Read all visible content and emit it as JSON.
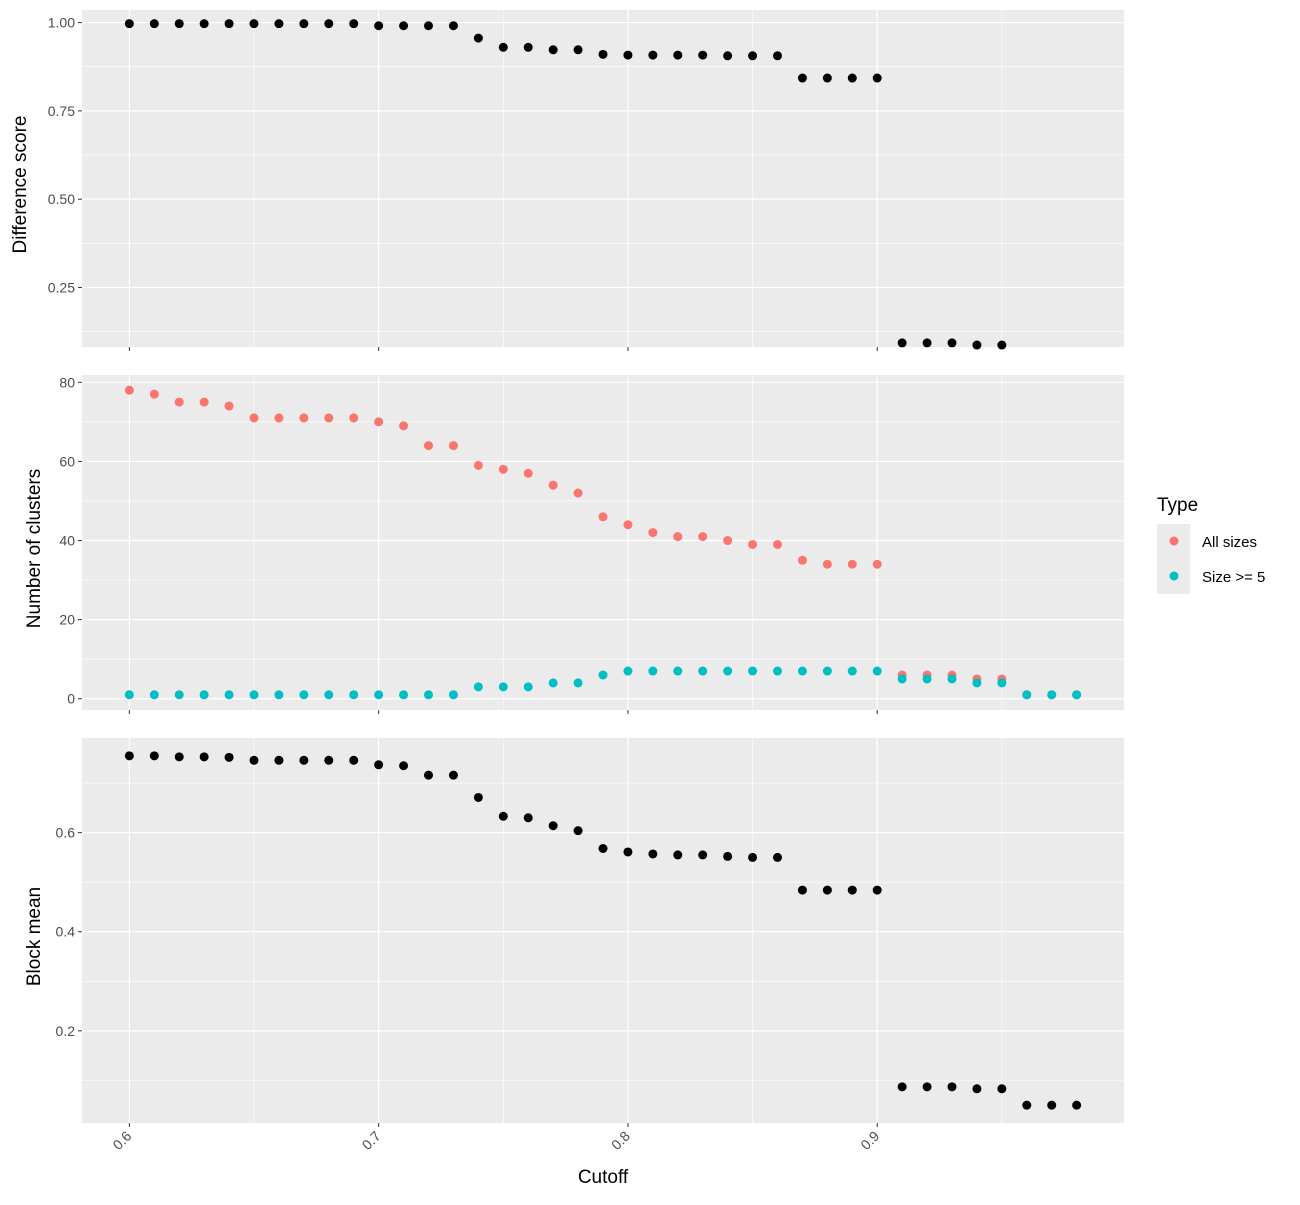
{
  "chart_data": [
    {
      "type": "scatter",
      "ylabel": "Difference score",
      "xlabel": "",
      "xlim": [
        0.581,
        0.999
      ],
      "ylim": [
        0.0814,
        1.0356
      ],
      "yticks": [
        0.25,
        0.5,
        0.75,
        1.0
      ],
      "ytick_labels": [
        "0.25",
        "0.50",
        "0.75",
        "1.00"
      ],
      "series": [
        {
          "color": "#000000",
          "x": [
            0.6,
            0.61,
            0.62,
            0.63,
            0.64,
            0.65,
            0.66,
            0.67,
            0.68,
            0.69,
            0.7,
            0.71,
            0.72,
            0.73,
            0.74,
            0.75,
            0.76,
            0.77,
            0.78,
            0.79,
            0.8,
            0.81,
            0.82,
            0.83,
            0.84,
            0.85,
            0.86,
            0.87,
            0.88,
            0.89,
            0.9,
            0.91,
            0.92,
            0.93,
            0.94,
            0.95
          ],
          "y": [
            0.997,
            0.997,
            0.997,
            0.997,
            0.997,
            0.997,
            0.997,
            0.997,
            0.997,
            0.997,
            0.991,
            0.991,
            0.991,
            0.991,
            0.956,
            0.93,
            0.93,
            0.923,
            0.923,
            0.91,
            0.908,
            0.908,
            0.908,
            0.908,
            0.906,
            0.906,
            0.906,
            0.843,
            0.843,
            0.843,
            0.843,
            0.093,
            0.093,
            0.093,
            0.087,
            0.087
          ]
        }
      ]
    },
    {
      "type": "scatter",
      "ylabel": "Number of clusters",
      "xlabel": "",
      "xlim": [
        0.581,
        0.999
      ],
      "ylim": [
        -2.85,
        81.85
      ],
      "yticks": [
        0,
        20,
        40,
        60,
        80
      ],
      "ytick_labels": [
        "0",
        "20",
        "40",
        "60",
        "80"
      ],
      "series": [
        {
          "name": "All sizes",
          "color": "#F8766D",
          "x": [
            0.6,
            0.61,
            0.62,
            0.63,
            0.64,
            0.65,
            0.66,
            0.67,
            0.68,
            0.69,
            0.7,
            0.71,
            0.72,
            0.73,
            0.74,
            0.75,
            0.76,
            0.77,
            0.78,
            0.79,
            0.8,
            0.81,
            0.82,
            0.83,
            0.84,
            0.85,
            0.86,
            0.87,
            0.88,
            0.89,
            0.9,
            0.91,
            0.92,
            0.93,
            0.94,
            0.95,
            0.96,
            0.97,
            0.98
          ],
          "y": [
            78,
            77,
            75,
            75,
            74,
            71,
            71,
            71,
            71,
            71,
            70,
            69,
            64,
            64,
            59,
            58,
            57,
            54,
            52,
            46,
            44,
            42,
            41,
            41,
            40,
            39,
            39,
            35,
            34,
            34,
            34,
            6,
            6,
            6,
            5,
            5,
            1,
            1,
            1
          ]
        },
        {
          "name": "Size >= 5",
          "color": "#00BFC4",
          "x": [
            0.6,
            0.61,
            0.62,
            0.63,
            0.64,
            0.65,
            0.66,
            0.67,
            0.68,
            0.69,
            0.7,
            0.71,
            0.72,
            0.73,
            0.74,
            0.75,
            0.76,
            0.77,
            0.78,
            0.79,
            0.8,
            0.81,
            0.82,
            0.83,
            0.84,
            0.85,
            0.86,
            0.87,
            0.88,
            0.89,
            0.9,
            0.91,
            0.92,
            0.93,
            0.94,
            0.95,
            0.96,
            0.97,
            0.98
          ],
          "y": [
            1,
            1,
            1,
            1,
            1,
            1,
            1,
            1,
            1,
            1,
            1,
            1,
            1,
            1,
            3,
            3,
            3,
            4,
            4,
            6,
            7,
            7,
            7,
            7,
            7,
            7,
            7,
            7,
            7,
            7,
            7,
            5,
            5,
            5,
            4,
            4,
            1,
            1,
            1
          ]
        }
      ]
    },
    {
      "type": "scatter",
      "ylabel": "Block mean",
      "xlabel": "Cutoff",
      "xlim": [
        0.581,
        0.999
      ],
      "ylim": [
        0.014,
        0.791
      ],
      "yticks": [
        0.2,
        0.4,
        0.6
      ],
      "ytick_labels": [
        "0.2",
        "0.4",
        "0.6"
      ],
      "xticks": [
        0.6,
        0.7,
        0.8,
        0.9
      ],
      "xtick_labels": [
        "0.6",
        "0.7",
        "0.8",
        "0.9"
      ],
      "series": [
        {
          "color": "#000000",
          "x": [
            0.6,
            0.61,
            0.62,
            0.63,
            0.64,
            0.65,
            0.66,
            0.67,
            0.68,
            0.69,
            0.7,
            0.71,
            0.72,
            0.73,
            0.74,
            0.75,
            0.76,
            0.77,
            0.78,
            0.79,
            0.8,
            0.81,
            0.82,
            0.83,
            0.84,
            0.85,
            0.86,
            0.87,
            0.88,
            0.89,
            0.9,
            0.91,
            0.92,
            0.93,
            0.94,
            0.95,
            0.96,
            0.97,
            0.98
          ],
          "y": [
            0.755,
            0.755,
            0.753,
            0.753,
            0.752,
            0.746,
            0.746,
            0.746,
            0.746,
            0.746,
            0.737,
            0.735,
            0.716,
            0.716,
            0.671,
            0.633,
            0.63,
            0.614,
            0.604,
            0.568,
            0.561,
            0.557,
            0.555,
            0.555,
            0.552,
            0.55,
            0.55,
            0.484,
            0.484,
            0.484,
            0.484,
            0.087,
            0.087,
            0.087,
            0.083,
            0.083,
            0.05,
            0.05,
            0.05
          ]
        }
      ]
    }
  ],
  "legend": {
    "title": "Type",
    "items": [
      {
        "label": "All sizes",
        "color": "#F8766D"
      },
      {
        "label": "Size >= 5",
        "color": "#00BFC4"
      }
    ]
  },
  "style": {
    "panel_background": "#EBEBEB",
    "grid_color": "#FFFFFF",
    "tick_color": "#333333"
  }
}
